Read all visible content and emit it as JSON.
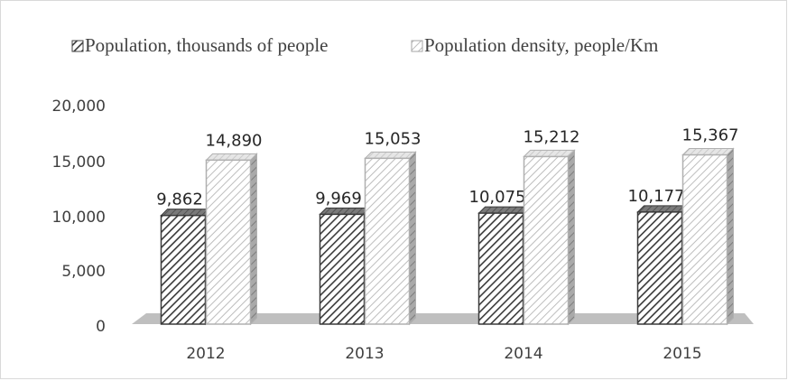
{
  "chart_data": {
    "type": "bar",
    "title": "",
    "xlabel": "",
    "ylabel": "",
    "categories": [
      "2012",
      "2013",
      "2014",
      "2015"
    ],
    "series": [
      {
        "name": "Population, thousands of people",
        "values": [
          9862,
          9969,
          10075,
          10177
        ],
        "labels": [
          "9,862",
          "9,969",
          "10,075",
          "10,177"
        ],
        "color": "#595959",
        "pattern": "dark-diagonal-hatch"
      },
      {
        "name": "Population density, people/Km",
        "values": [
          14890,
          15053,
          15212,
          15367
        ],
        "labels": [
          "14,890",
          "15,053",
          "15,212",
          "15,367"
        ],
        "color": "#d9d9d9",
        "pattern": "light-diagonal-hatch"
      }
    ],
    "ylim": [
      0,
      20000
    ],
    "yticks": [
      0,
      5000,
      10000,
      15000,
      20000
    ],
    "ytick_labels": [
      "0",
      "5,000",
      "10,000",
      "15,000",
      "20,000"
    ],
    "gridlines": false,
    "legend_position": "top",
    "style": "3d-clustered-column"
  }
}
